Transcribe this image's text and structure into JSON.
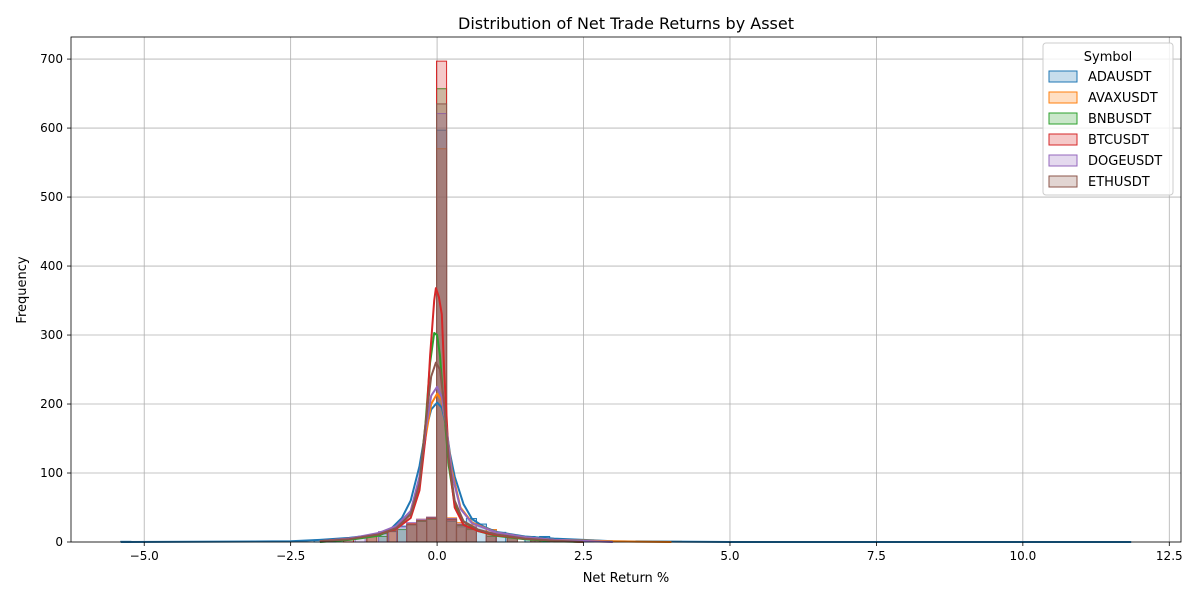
{
  "chart_data": {
    "type": "histogram",
    "title": "Distribution of Net Trade Returns by Asset",
    "xlabel": "Net Return %",
    "ylabel": "Frequency",
    "xlim": [
      -6.25,
      12.7
    ],
    "ylim": [
      0,
      732
    ],
    "xticks": [
      -5.0,
      -2.5,
      0.0,
      2.5,
      5.0,
      7.5,
      10.0,
      12.5
    ],
    "xtick_labels": [
      "−5.0",
      "−2.5",
      "0.0",
      "2.5",
      "5.0",
      "7.5",
      "10.0",
      "12.5"
    ],
    "yticks": [
      0,
      100,
      200,
      300,
      400,
      500,
      600,
      700
    ],
    "ytick_labels": [
      "0",
      "100",
      "200",
      "300",
      "400",
      "500",
      "600",
      "700"
    ],
    "grid": true,
    "legend": {
      "title": "Symbol",
      "placement": "top-right"
    },
    "bin_width": 0.172,
    "series": [
      {
        "name": "ADAUSDT",
        "color": "#1f77b4",
        "bins": [
          [
            -5.4,
            1
          ],
          [
            -2.1,
            3
          ],
          [
            -1.9,
            3
          ],
          [
            -1.2,
            8
          ],
          [
            -1.0,
            12
          ],
          [
            -0.85,
            15
          ],
          [
            -0.69,
            23
          ],
          [
            -0.52,
            26
          ],
          [
            -0.35,
            30
          ],
          [
            -0.18,
            35
          ],
          [
            -0.01,
            597
          ],
          [
            0.16,
            30
          ],
          [
            0.33,
            22
          ],
          [
            0.5,
            34
          ],
          [
            0.67,
            26
          ],
          [
            0.84,
            18
          ],
          [
            1.0,
            14
          ],
          [
            1.2,
            10
          ],
          [
            1.5,
            8
          ],
          [
            1.75,
            8
          ],
          [
            2.0,
            4
          ],
          [
            2.5,
            3
          ],
          [
            3.0,
            1
          ]
        ],
        "kde": [
          [
            -5.4,
            0
          ],
          [
            -2.5,
            1
          ],
          [
            -2.0,
            3
          ],
          [
            -1.5,
            6
          ],
          [
            -1.0,
            11
          ],
          [
            -0.8,
            18
          ],
          [
            -0.6,
            35
          ],
          [
            -0.45,
            60
          ],
          [
            -0.3,
            110
          ],
          [
            -0.2,
            160
          ],
          [
            -0.1,
            192
          ],
          [
            0.0,
            202
          ],
          [
            0.08,
            195
          ],
          [
            0.15,
            170
          ],
          [
            0.22,
            128
          ],
          [
            0.3,
            95
          ],
          [
            0.45,
            55
          ],
          [
            0.6,
            33
          ],
          [
            0.8,
            22
          ],
          [
            1.0,
            15
          ],
          [
            1.5,
            8
          ],
          [
            2.0,
            5
          ],
          [
            2.5,
            3
          ],
          [
            3.0,
            1
          ],
          [
            5.0,
            0
          ],
          [
            11.85,
            0
          ]
        ]
      },
      {
        "name": "AVAXUSDT",
        "color": "#ff7f0e",
        "bins": [
          [
            -1.2,
            10
          ],
          [
            -0.85,
            17
          ],
          [
            -0.52,
            27
          ],
          [
            -0.35,
            33
          ],
          [
            -0.18,
            36
          ],
          [
            -0.01,
            570
          ],
          [
            0.16,
            35
          ],
          [
            0.33,
            28
          ],
          [
            0.5,
            25
          ],
          [
            0.84,
            18
          ],
          [
            1.2,
            9
          ],
          [
            1.6,
            5
          ],
          [
            2.0,
            3
          ],
          [
            4.0,
            1
          ]
        ],
        "kde": [
          [
            -2.0,
            1
          ],
          [
            -1.5,
            5
          ],
          [
            -1.0,
            12
          ],
          [
            -0.7,
            22
          ],
          [
            -0.45,
            45
          ],
          [
            -0.3,
            90
          ],
          [
            -0.2,
            150
          ],
          [
            -0.1,
            200
          ],
          [
            0.0,
            215
          ],
          [
            0.08,
            205
          ],
          [
            0.15,
            170
          ],
          [
            0.25,
            105
          ],
          [
            0.4,
            50
          ],
          [
            0.6,
            28
          ],
          [
            1.0,
            14
          ],
          [
            1.5,
            7
          ],
          [
            2.0,
            3
          ],
          [
            3.0,
            1
          ],
          [
            4.0,
            0
          ]
        ]
      },
      {
        "name": "BNBUSDT",
        "color": "#2ca02c",
        "bins": [
          [
            -1.0,
            8
          ],
          [
            -0.69,
            18
          ],
          [
            -0.52,
            25
          ],
          [
            -0.35,
            30
          ],
          [
            -0.18,
            33
          ],
          [
            -0.01,
            657
          ],
          [
            0.16,
            33
          ],
          [
            0.33,
            24
          ],
          [
            0.5,
            18
          ],
          [
            0.84,
            8
          ],
          [
            1.2,
            6
          ],
          [
            1.6,
            4
          ],
          [
            2.0,
            2
          ]
        ],
        "kde": [
          [
            -2.0,
            0
          ],
          [
            -1.5,
            3
          ],
          [
            -1.0,
            9
          ],
          [
            -0.7,
            20
          ],
          [
            -0.45,
            42
          ],
          [
            -0.3,
            90
          ],
          [
            -0.2,
            170
          ],
          [
            -0.12,
            260
          ],
          [
            -0.05,
            303
          ],
          [
            0.0,
            300
          ],
          [
            0.05,
            270
          ],
          [
            0.12,
            190
          ],
          [
            0.2,
            110
          ],
          [
            0.3,
            55
          ],
          [
            0.45,
            30
          ],
          [
            0.7,
            16
          ],
          [
            1.0,
            9
          ],
          [
            1.5,
            4
          ],
          [
            2.0,
            1
          ],
          [
            2.5,
            0
          ]
        ]
      },
      {
        "name": "BTCUSDT",
        "color": "#d62728",
        "bins": [
          [
            -1.6,
            5
          ],
          [
            -1.2,
            10
          ],
          [
            -0.85,
            18
          ],
          [
            -0.52,
            26
          ],
          [
            -0.35,
            31
          ],
          [
            -0.18,
            34
          ],
          [
            -0.01,
            697
          ],
          [
            0.16,
            32
          ],
          [
            0.33,
            25
          ],
          [
            0.5,
            20
          ],
          [
            0.84,
            12
          ],
          [
            1.2,
            7
          ],
          [
            1.6,
            4
          ],
          [
            2.0,
            2
          ]
        ],
        "kde": [
          [
            -2.0,
            1
          ],
          [
            -1.5,
            5
          ],
          [
            -1.0,
            11
          ],
          [
            -0.7,
            19
          ],
          [
            -0.45,
            35
          ],
          [
            -0.3,
            75
          ],
          [
            -0.2,
            150
          ],
          [
            -0.12,
            270
          ],
          [
            -0.05,
            350
          ],
          [
            -0.02,
            368
          ],
          [
            0.03,
            355
          ],
          [
            0.08,
            330
          ],
          [
            0.12,
            250
          ],
          [
            0.2,
            120
          ],
          [
            0.3,
            50
          ],
          [
            0.45,
            25
          ],
          [
            0.7,
            16
          ],
          [
            1.0,
            10
          ],
          [
            1.5,
            5
          ],
          [
            2.0,
            2
          ],
          [
            2.5,
            0
          ]
        ]
      },
      {
        "name": "DOGEUSDT",
        "color": "#9467bd",
        "bins": [
          [
            -1.4,
            6
          ],
          [
            -1.0,
            15
          ],
          [
            -0.69,
            22
          ],
          [
            -0.52,
            28
          ],
          [
            -0.35,
            33
          ],
          [
            -0.18,
            36
          ],
          [
            -0.01,
            621
          ],
          [
            0.16,
            34
          ],
          [
            0.33,
            26
          ],
          [
            0.5,
            22
          ],
          [
            0.84,
            14
          ],
          [
            1.2,
            8
          ],
          [
            1.6,
            5
          ],
          [
            2.0,
            3
          ]
        ],
        "kde": [
          [
            -2.0,
            1
          ],
          [
            -1.5,
            5
          ],
          [
            -1.0,
            13
          ],
          [
            -0.7,
            23
          ],
          [
            -0.45,
            45
          ],
          [
            -0.3,
            95
          ],
          [
            -0.2,
            160
          ],
          [
            -0.1,
            212
          ],
          [
            0.0,
            225
          ],
          [
            0.08,
            210
          ],
          [
            0.15,
            170
          ],
          [
            0.25,
            100
          ],
          [
            0.4,
            48
          ],
          [
            0.6,
            27
          ],
          [
            1.0,
            14
          ],
          [
            1.5,
            7
          ],
          [
            2.0,
            3
          ],
          [
            3.0,
            0
          ]
        ]
      },
      {
        "name": "ETHUSDT",
        "color": "#8c564b",
        "bins": [
          [
            -1.2,
            8
          ],
          [
            -0.85,
            16
          ],
          [
            -0.52,
            25
          ],
          [
            -0.35,
            31
          ],
          [
            -0.18,
            35
          ],
          [
            -0.01,
            635
          ],
          [
            0.16,
            33
          ],
          [
            0.33,
            25
          ],
          [
            0.5,
            20
          ],
          [
            0.84,
            12
          ],
          [
            1.2,
            7
          ],
          [
            1.6,
            4
          ],
          [
            2.0,
            2
          ]
        ],
        "kde": [
          [
            -2.0,
            1
          ],
          [
            -1.5,
            4
          ],
          [
            -1.0,
            11
          ],
          [
            -0.7,
            20
          ],
          [
            -0.45,
            40
          ],
          [
            -0.3,
            85
          ],
          [
            -0.2,
            170
          ],
          [
            -0.1,
            240
          ],
          [
            -0.02,
            260
          ],
          [
            0.05,
            250
          ],
          [
            0.12,
            200
          ],
          [
            0.2,
            120
          ],
          [
            0.3,
            60
          ],
          [
            0.45,
            30
          ],
          [
            0.7,
            18
          ],
          [
            1.0,
            11
          ],
          [
            1.5,
            5
          ],
          [
            2.0,
            2
          ],
          [
            2.5,
            0
          ]
        ]
      }
    ]
  }
}
